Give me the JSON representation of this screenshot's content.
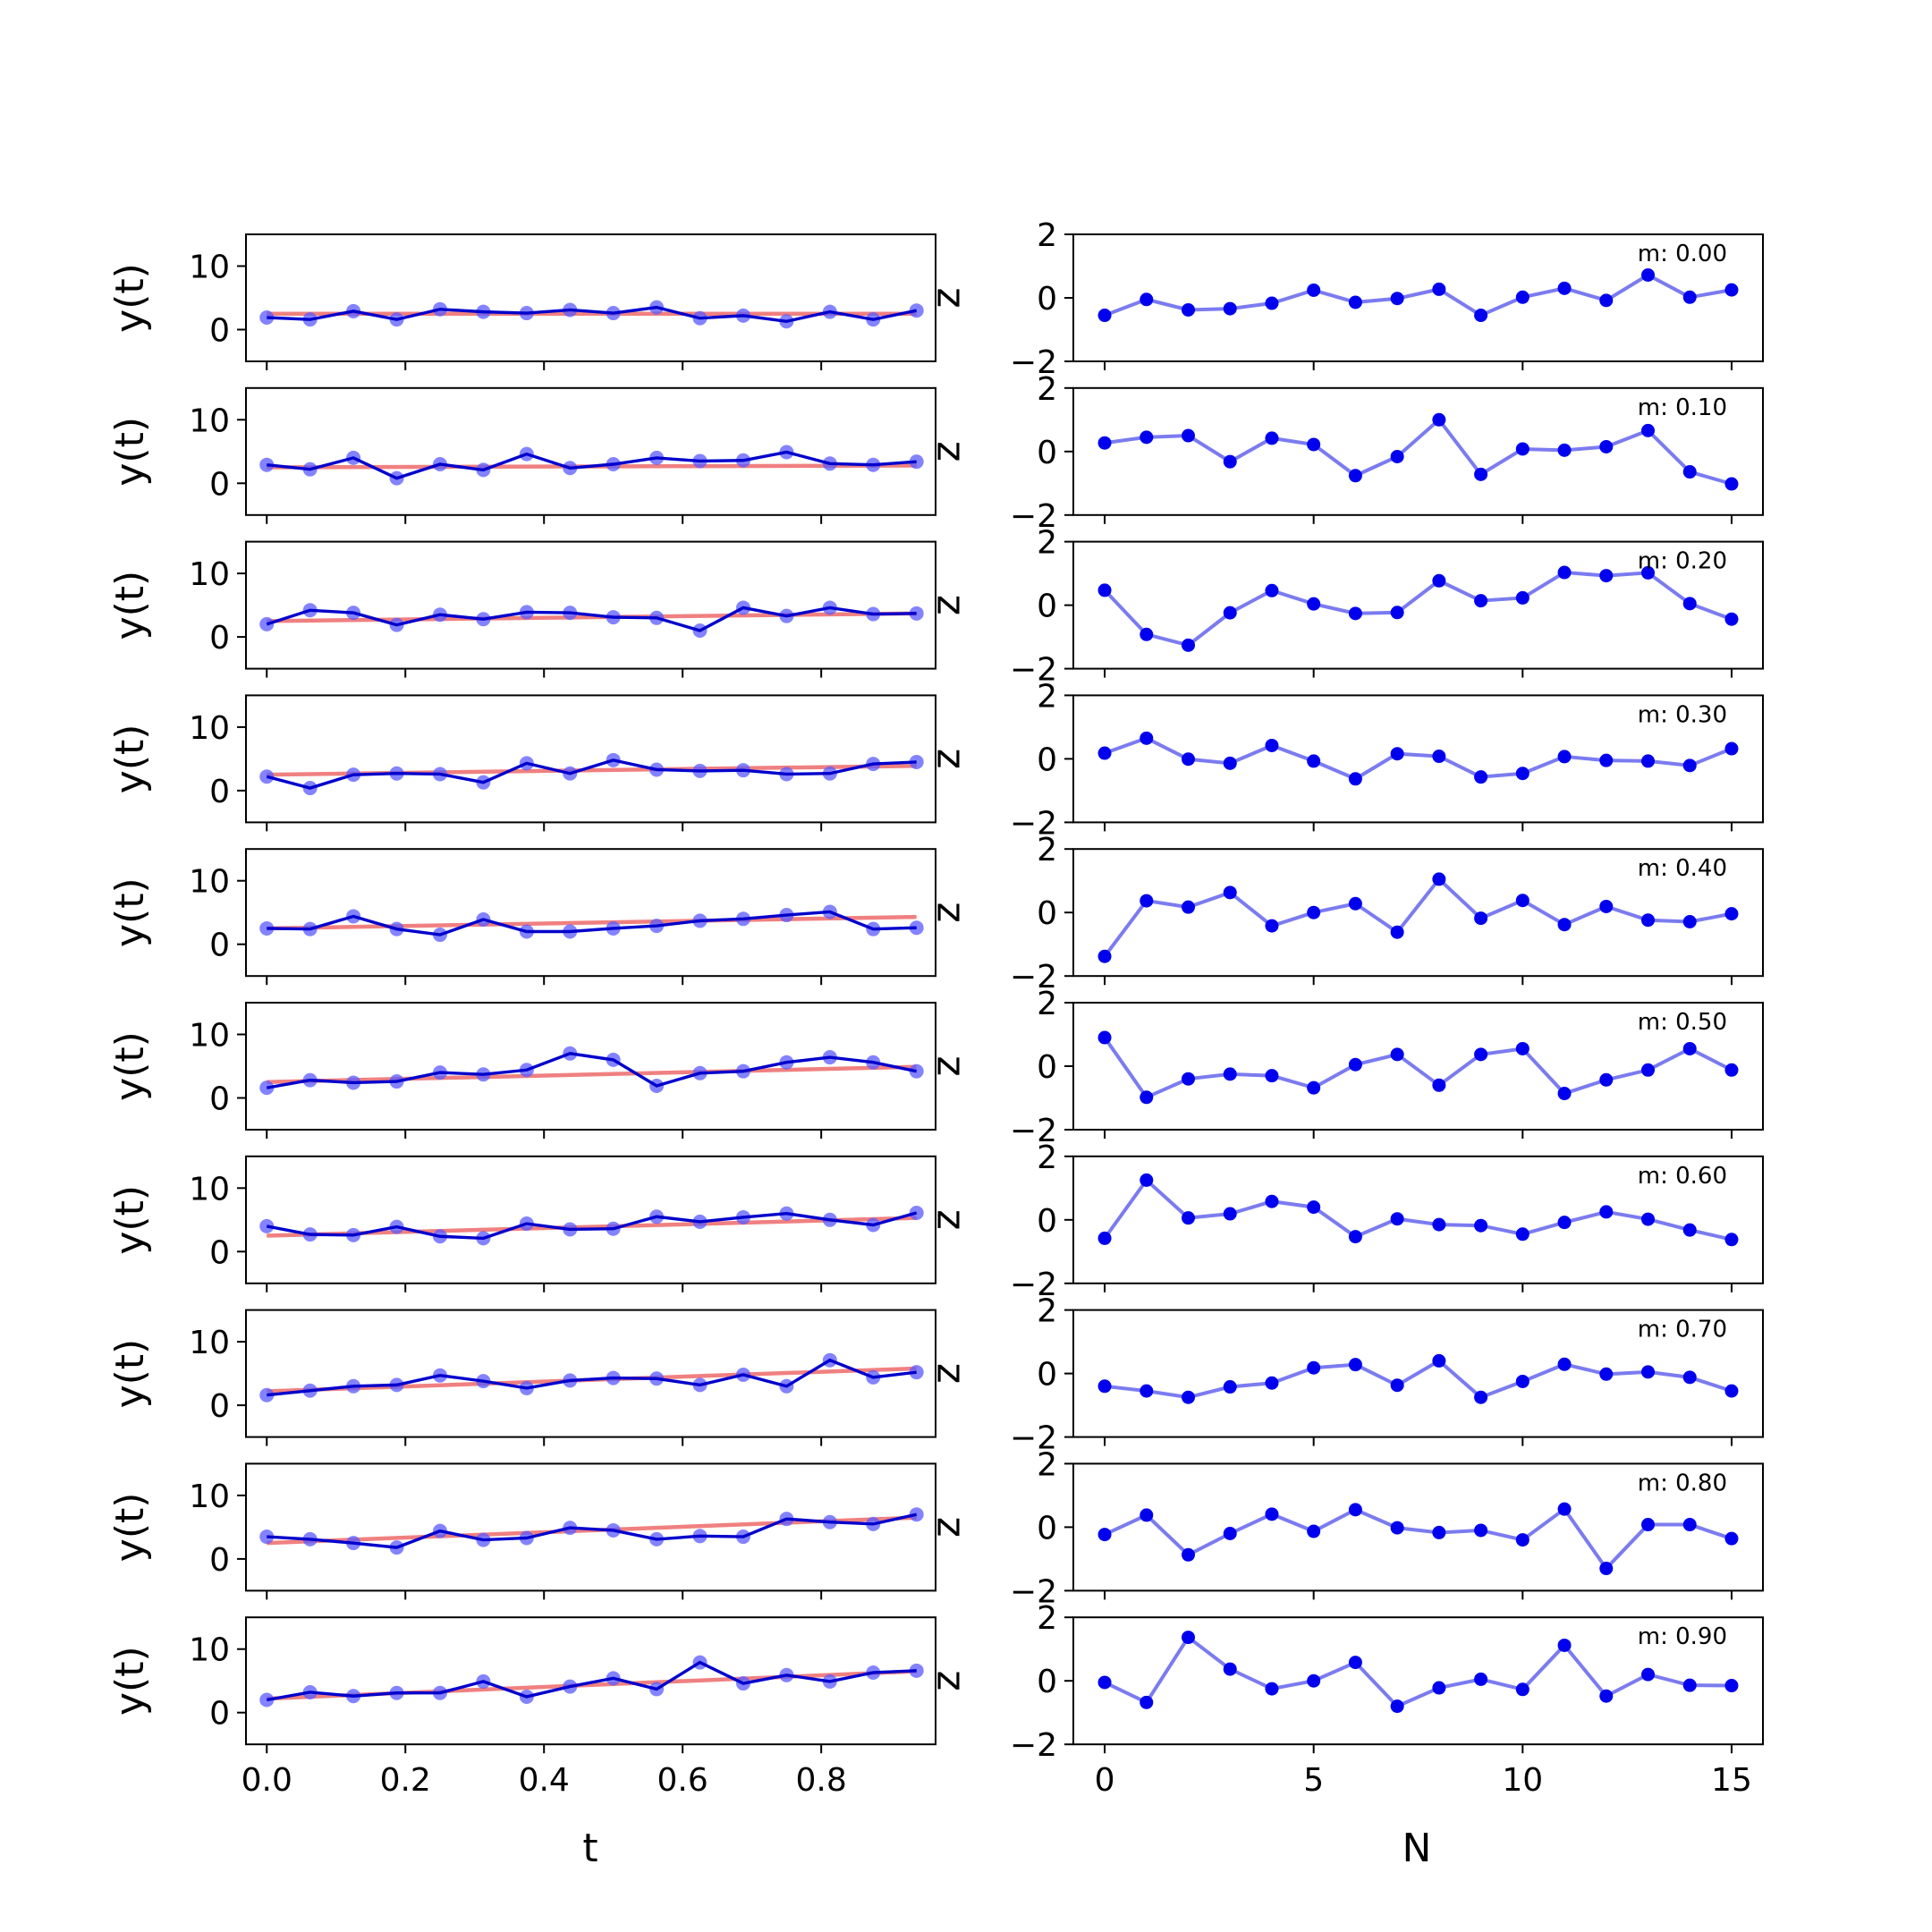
{
  "chart_data": {
    "type": "line",
    "layout": "10 rows x 2 columns of subplots",
    "left_column": {
      "xlabel": "t",
      "ylabel": "y(t)",
      "xlim": [
        -0.03,
        0.965
      ],
      "ylim": [
        -5,
        15
      ],
      "x_ticks": [
        0.0,
        0.2,
        0.4,
        0.6,
        0.8
      ],
      "x_tick_labels": [
        "0.0",
        "0.2",
        "0.4",
        "0.6",
        "0.8"
      ],
      "y_ticks": [
        0,
        10
      ],
      "y_tick_labels": [
        "0",
        "10"
      ],
      "x": [
        0.0,
        0.0625,
        0.125,
        0.1875,
        0.25,
        0.3125,
        0.375,
        0.4375,
        0.5,
        0.5625,
        0.625,
        0.6875,
        0.75,
        0.8125,
        0.875,
        0.9375
      ],
      "data_color": "#0000cc",
      "marker_color": "#5a5aff",
      "fit_color": "#f08080"
    },
    "right_column": {
      "xlabel": "N",
      "ylabel": "z",
      "xlim": [
        -0.75,
        15.75
      ],
      "ylim": [
        -2,
        2
      ],
      "x_ticks": [
        0,
        5,
        10,
        15
      ],
      "x_tick_labels": [
        "0",
        "5",
        "10",
        "15"
      ],
      "y_ticks": [
        -2,
        0,
        2
      ],
      "y_tick_labels": [
        "−2",
        "0",
        "2"
      ],
      "x": [
        0,
        1,
        2,
        3,
        4,
        5,
        6,
        7,
        8,
        9,
        10,
        11,
        12,
        13,
        14,
        15
      ],
      "line_color": "#7b7bf0",
      "marker_color": "#0000ee"
    },
    "panels": [
      {
        "m_label": "m: 0.00",
        "fit": [
          2.5,
          2.5
        ],
        "y": [
          1.9,
          1.6,
          2.9,
          1.6,
          3.2,
          2.8,
          2.6,
          3.1,
          2.6,
          3.5,
          1.8,
          2.2,
          1.3,
          2.8,
          1.6,
          3.0
        ],
        "residuals": [
          -0.55,
          -0.05,
          -0.38,
          -0.34,
          -0.17,
          0.24,
          -0.14,
          -0.02,
          0.27,
          -0.55,
          0.02,
          0.3,
          -0.08,
          0.72,
          0.02,
          0.25
        ]
      },
      {
        "m_label": "m: 0.10",
        "fit": [
          2.5,
          2.8
        ],
        "y": [
          2.9,
          2.2,
          4.0,
          0.8,
          3.0,
          2.1,
          4.6,
          2.4,
          3.0,
          4.0,
          3.5,
          3.6,
          4.9,
          3.1,
          2.9,
          3.4
        ],
        "residuals": [
          0.27,
          0.45,
          0.5,
          -0.32,
          0.42,
          0.22,
          -0.76,
          -0.16,
          1.0,
          -0.72,
          0.08,
          0.04,
          0.15,
          0.66,
          -0.64,
          -1.02
        ]
      },
      {
        "m_label": "m: 0.20",
        "fit": [
          2.5,
          3.7
        ],
        "y": [
          2.0,
          4.2,
          3.8,
          1.9,
          3.5,
          2.8,
          3.9,
          3.8,
          3.1,
          3.0,
          1.0,
          4.6,
          3.3,
          4.6,
          3.6,
          3.7
        ],
        "residuals": [
          0.47,
          -0.92,
          -1.26,
          -0.24,
          0.46,
          0.04,
          -0.26,
          -0.23,
          0.77,
          0.14,
          0.23,
          1.03,
          0.93,
          1.02,
          0.05,
          -0.44
        ]
      },
      {
        "m_label": "m: 0.30",
        "fit": [
          2.5,
          3.9
        ],
        "y": [
          2.2,
          0.4,
          2.5,
          2.7,
          2.6,
          1.3,
          4.3,
          2.7,
          4.8,
          3.3,
          3.1,
          3.2,
          2.6,
          2.7,
          4.2,
          4.5
        ],
        "residuals": [
          0.18,
          0.65,
          -0.01,
          -0.14,
          0.42,
          -0.07,
          -0.63,
          0.16,
          0.08,
          -0.57,
          -0.46,
          0.07,
          -0.05,
          -0.07,
          -0.21,
          0.32
        ]
      },
      {
        "m_label": "m: 0.40",
        "fit": [
          2.5,
          4.3
        ],
        "y": [
          2.5,
          2.4,
          4.4,
          2.4,
          1.5,
          3.9,
          2.0,
          2.0,
          2.5,
          2.9,
          3.7,
          4.0,
          4.6,
          5.1,
          2.4,
          2.6
        ],
        "residuals": [
          -1.38,
          0.37,
          0.17,
          0.63,
          -0.42,
          0.0,
          0.28,
          -0.62,
          1.05,
          -0.18,
          0.38,
          -0.38,
          0.19,
          -0.24,
          -0.29,
          -0.04
        ]
      },
      {
        "m_label": "m: 0.50",
        "fit": [
          2.5,
          4.9
        ],
        "y": [
          1.6,
          2.8,
          2.4,
          2.6,
          4.0,
          3.7,
          4.4,
          7.0,
          6.0,
          1.9,
          3.9,
          4.2,
          5.6,
          6.4,
          5.6,
          4.2
        ],
        "residuals": [
          0.9,
          -0.98,
          -0.4,
          -0.25,
          -0.3,
          -0.68,
          0.05,
          0.37,
          -0.6,
          0.37,
          0.55,
          -0.86,
          -0.43,
          -0.12,
          0.55,
          -0.12
        ]
      },
      {
        "m_label": "m: 0.60",
        "fit": [
          2.5,
          5.3
        ],
        "y": [
          4.0,
          2.7,
          2.6,
          3.9,
          2.4,
          2.1,
          4.4,
          3.5,
          3.6,
          5.5,
          4.7,
          5.4,
          6.0,
          5.0,
          4.2,
          6.1
        ],
        "residuals": [
          -0.58,
          1.25,
          0.06,
          0.19,
          0.58,
          0.4,
          -0.53,
          0.03,
          -0.15,
          -0.18,
          -0.45,
          -0.08,
          0.25,
          0.02,
          -0.32,
          -0.62
        ]
      },
      {
        "m_label": "m: 0.70",
        "fit": [
          2.2,
          5.8
        ],
        "y": [
          1.6,
          2.3,
          3.0,
          3.2,
          4.7,
          3.8,
          2.7,
          3.9,
          4.3,
          4.2,
          3.2,
          4.8,
          3.0,
          7.1,
          4.4,
          5.2
        ],
        "residuals": [
          -0.4,
          -0.55,
          -0.75,
          -0.42,
          -0.3,
          0.18,
          0.28,
          -0.37,
          0.4,
          -0.75,
          -0.25,
          0.29,
          -0.02,
          0.05,
          -0.12,
          -0.55
        ]
      },
      {
        "m_label": "m: 0.80",
        "fit": [
          2.5,
          6.5
        ],
        "y": [
          3.5,
          3.1,
          2.5,
          1.8,
          4.4,
          3.0,
          3.3,
          4.9,
          4.5,
          3.1,
          3.6,
          3.5,
          6.3,
          5.8,
          5.5,
          7.0
        ],
        "residuals": [
          -0.23,
          0.38,
          -0.87,
          -0.2,
          0.41,
          -0.13,
          0.55,
          -0.02,
          -0.17,
          -0.1,
          -0.4,
          0.57,
          -1.3,
          0.08,
          0.08,
          -0.36
        ]
      },
      {
        "m_label": "m: 0.90",
        "fit": [
          2.2,
          6.5
        ],
        "y": [
          2.0,
          3.2,
          2.6,
          3.1,
          3.1,
          4.9,
          2.5,
          4.1,
          5.4,
          3.7,
          7.9,
          4.6,
          5.9,
          4.9,
          6.3,
          6.6
        ],
        "residuals": [
          -0.05,
          -0.68,
          1.37,
          0.37,
          -0.25,
          0.0,
          0.58,
          -0.8,
          -0.22,
          0.05,
          -0.27,
          1.12,
          -0.48,
          0.2,
          -0.14,
          -0.15
        ]
      }
    ]
  }
}
